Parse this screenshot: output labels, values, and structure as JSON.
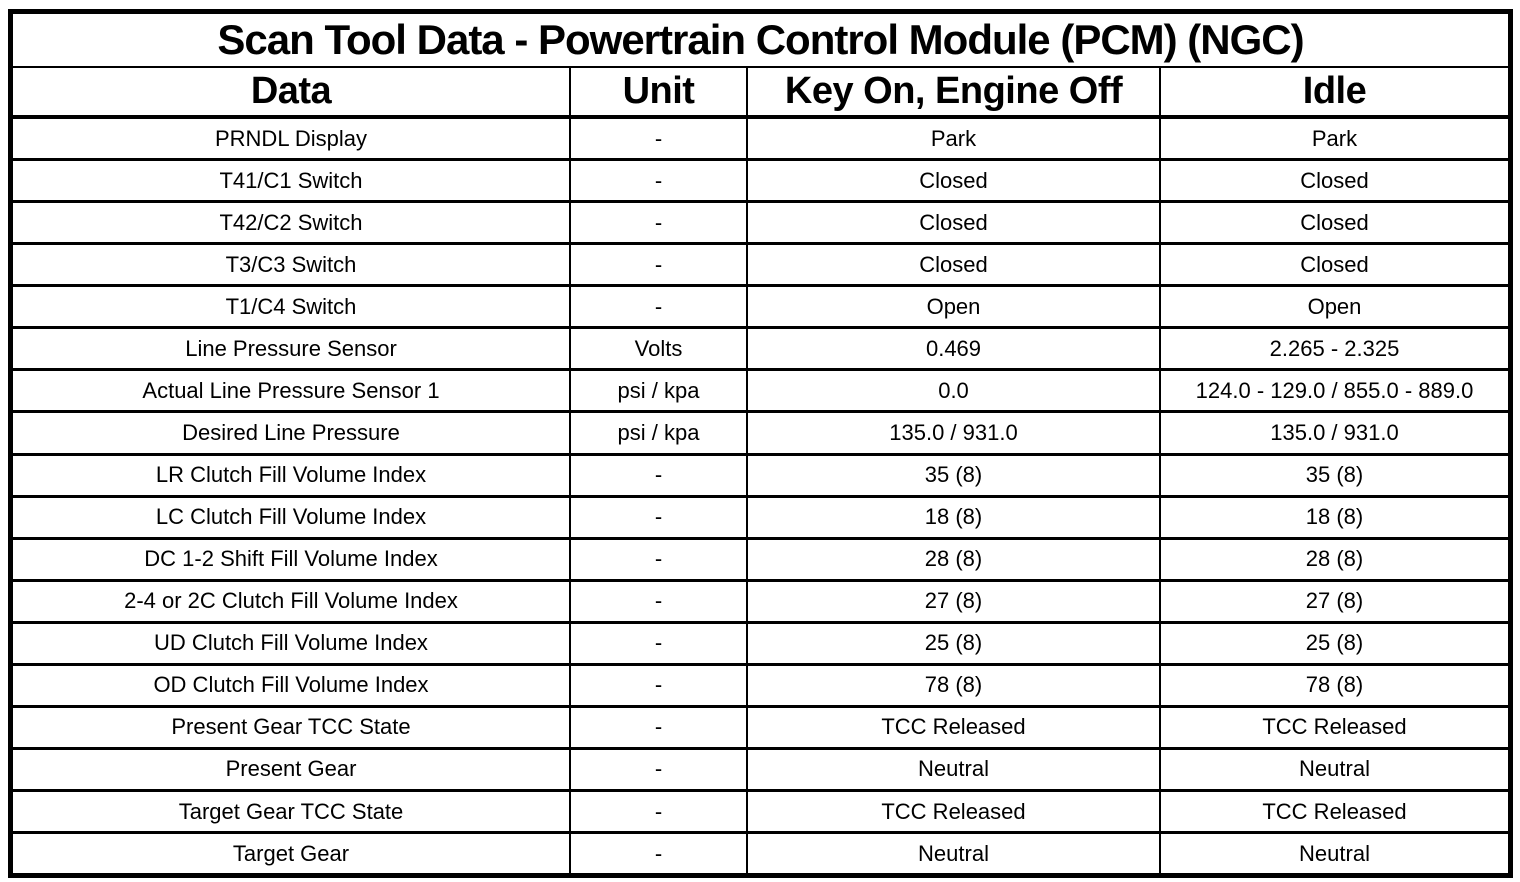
{
  "title": "Scan Tool Data - Powertrain Control Module (PCM) (NGC)",
  "table": {
    "columns": [
      "Data",
      "Unit",
      "Key On, Engine Off",
      "Idle"
    ],
    "rows": [
      [
        "PRNDL Display",
        "-",
        "Park",
        "Park"
      ],
      [
        "T41/C1 Switch",
        "-",
        "Closed",
        "Closed"
      ],
      [
        "T42/C2 Switch",
        "-",
        "Closed",
        "Closed"
      ],
      [
        "T3/C3 Switch",
        "-",
        "Closed",
        "Closed"
      ],
      [
        "T1/C4 Switch",
        "-",
        "Open",
        "Open"
      ],
      [
        "Line Pressure Sensor",
        "Volts",
        "0.469",
        "2.265 - 2.325"
      ],
      [
        "Actual Line Pressure Sensor 1",
        "psi / kpa",
        "0.0",
        "124.0 - 129.0 / 855.0 - 889.0"
      ],
      [
        "Desired Line Pressure",
        "psi / kpa",
        "135.0 / 931.0",
        "135.0 / 931.0"
      ],
      [
        "LR Clutch Fill Volume Index",
        "-",
        "35 (8)",
        "35 (8)"
      ],
      [
        "LC Clutch Fill Volume Index",
        "-",
        "18 (8)",
        "18 (8)"
      ],
      [
        "DC 1-2 Shift Fill Volume Index",
        "-",
        "28 (8)",
        "28 (8)"
      ],
      [
        "2-4 or 2C Clutch Fill Volume Index",
        "-",
        "27 (8)",
        "27 (8)"
      ],
      [
        "UD Clutch Fill Volume Index",
        "-",
        "25 (8)",
        "25 (8)"
      ],
      [
        "OD Clutch Fill Volume Index",
        "-",
        "78 (8)",
        "78 (8)"
      ],
      [
        "Present Gear TCC State",
        "-",
        "TCC Released",
        "TCC Released"
      ],
      [
        "Present Gear",
        "-",
        "Neutral",
        "Neutral"
      ],
      [
        "Target Gear TCC State",
        "-",
        "TCC Released",
        "TCC Released"
      ],
      [
        "Target Gear",
        "-",
        "Neutral",
        "Neutral"
      ]
    ]
  },
  "colors": {
    "border": "#000000",
    "background": "#ffffff",
    "text": "#000000"
  }
}
